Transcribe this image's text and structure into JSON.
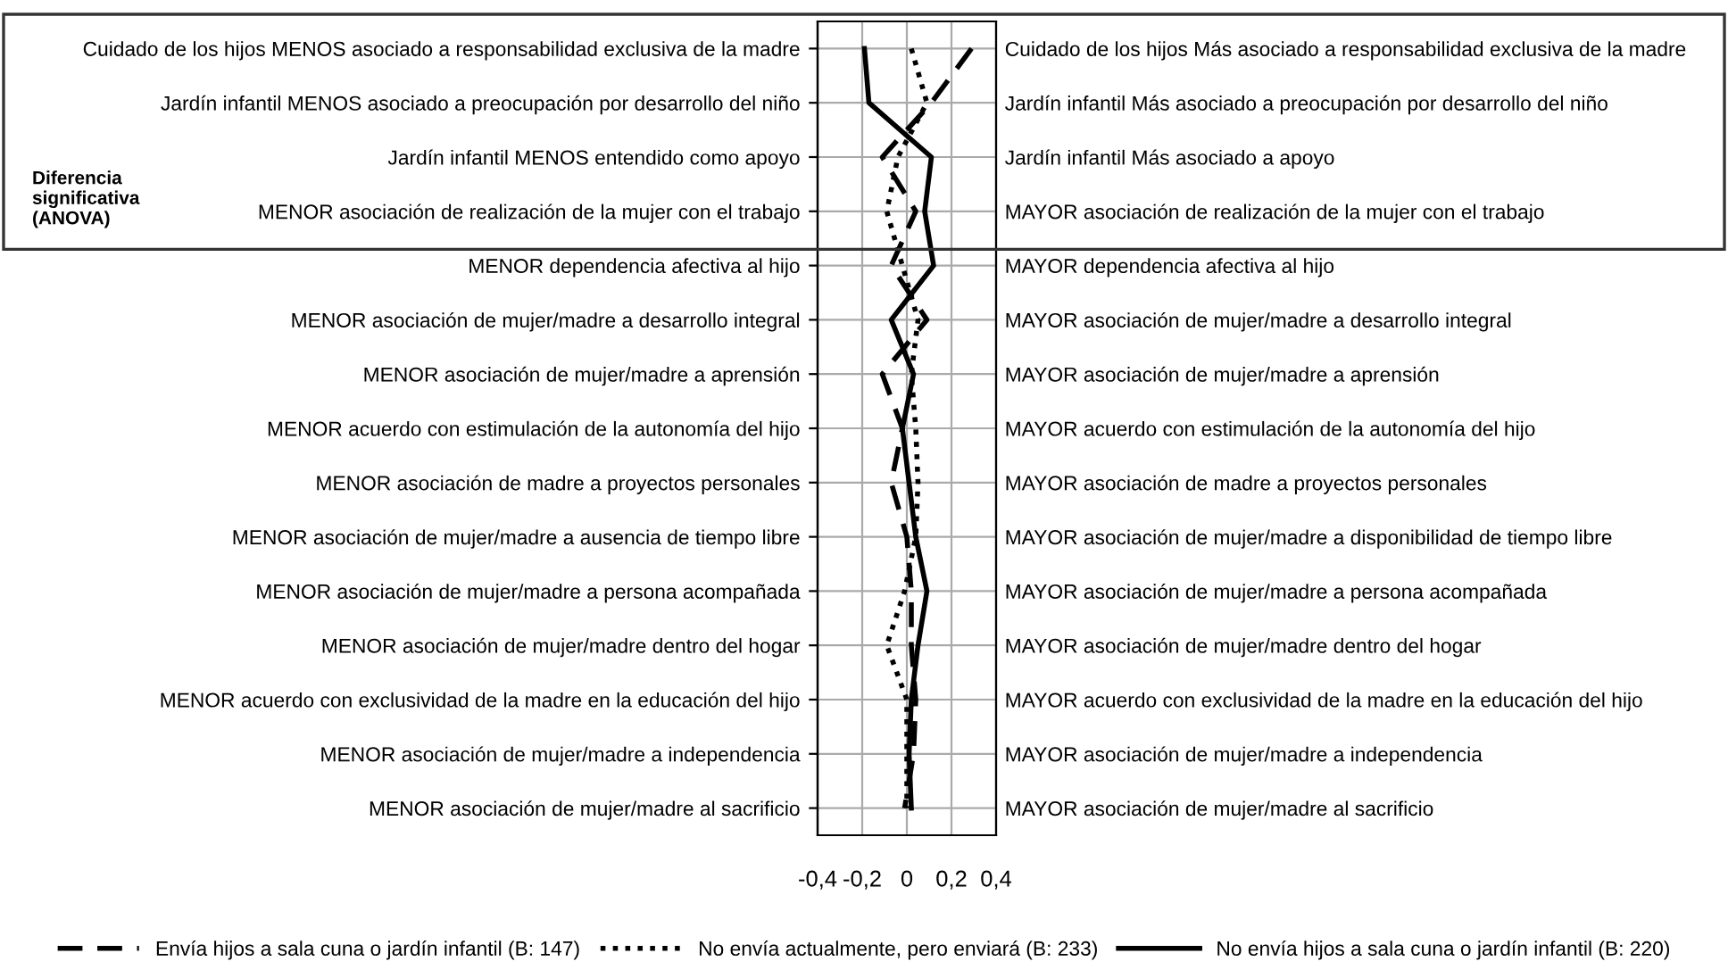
{
  "chart_data": {
    "type": "line",
    "orientation": "horizontal",
    "categories": [
      "Cuidado de los hijos MENOS asociado a responsabilidad exclusiva de la madre",
      "Jardín infantil MENOS asociado a preocupación por desarrollo del niño",
      "Jardín infantil MENOS entendido como apoyo",
      "MENOR asociación de realización de la mujer con el trabajo",
      "MENOR dependencia afectiva al hijo",
      "MENOR asociación de mujer/madre a desarrollo integral",
      "MENOR asociación de mujer/madre a aprensión",
      "MENOR acuerdo con estimulación de la autonomía del hijo",
      "MENOR asociación de madre a proyectos personales",
      "MENOR asociación de mujer/madre a ausencia de tiempo libre",
      "MENOR asociación de mujer/madre a persona acompañada",
      "MENOR asociación de mujer/madre dentro del hogar",
      "MENOR acuerdo con exclusividad de la madre en la educación del hijo",
      "MENOR asociación de mujer/madre a independencia",
      "MENOR asociación de mujer/madre al sacrificio"
    ],
    "y2_categories": [
      "Cuidado de los hijos Más asociado a responsabilidad exclusiva de la madre",
      "Jardín infantil Más asociado a preocupación por desarrollo del niño",
      "Jardín infantil Más asociado a apoyo",
      "MAYOR asociación de realización de la mujer con el trabajo",
      "MAYOR dependencia afectiva al hijo",
      "MAYOR asociación de mujer/madre a desarrollo integral",
      "MAYOR asociación de mujer/madre a aprensión",
      "MAYOR acuerdo con estimulación de la autonomía del hijo",
      "MAYOR asociación de madre a proyectos personales",
      "MAYOR asociación de mujer/madre a disponibilidad de tiempo libre",
      "MAYOR asociación de mujer/madre a persona acompañada",
      "MAYOR asociación de mujer/madre dentro del hogar",
      "MAYOR acuerdo con exclusividad de la madre en la educación del hijo",
      "MAYOR asociación de mujer/madre a independencia",
      "MAYOR asociación de mujer/madre al sacrificio"
    ],
    "series": [
      {
        "name": "Envía hijos a sala cuna o jardín infantil (B: 147)",
        "color": "#000000",
        "line_style": "dashed",
        "values": [
          0.29,
          0.11,
          -0.11,
          0.04,
          -0.07,
          0.09,
          -0.11,
          -0.02,
          -0.07,
          0.0,
          0.02,
          0.02,
          0.04,
          0.03,
          -0.01
        ]
      },
      {
        "name": "No envía actualmente, pero enviará (B: 233)",
        "color": "#000000",
        "line_style": "dotted",
        "values": [
          0.02,
          0.09,
          -0.04,
          -0.09,
          -0.02,
          0.05,
          0.02,
          0.04,
          0.05,
          0.04,
          -0.01,
          -0.09,
          0.0,
          0.0,
          0.0
        ]
      },
      {
        "name": "No envía hijos a sala cuna o jardín infantil (B: 220)",
        "color": "#000000",
        "line_style": "solid",
        "values": [
          -0.19,
          -0.17,
          0.11,
          0.08,
          0.12,
          -0.07,
          0.03,
          -0.02,
          0.01,
          0.04,
          0.09,
          0.05,
          0.02,
          0.01,
          0.02
        ]
      }
    ],
    "xlim": [
      -0.4,
      0.4
    ],
    "xticks": [
      {
        "value": -0.4,
        "label": "-0,4"
      },
      {
        "value": -0.2,
        "label": "-0,2"
      },
      0,
      {
        "value": 0.2,
        "label": "0,2"
      },
      {
        "value": 0.4,
        "label": "0,4"
      }
    ],
    "grid": true,
    "legend": "bottom",
    "marker": "none",
    "annotations": [
      "Diferencia significativa (ANOVA)"
    ]
  }
}
